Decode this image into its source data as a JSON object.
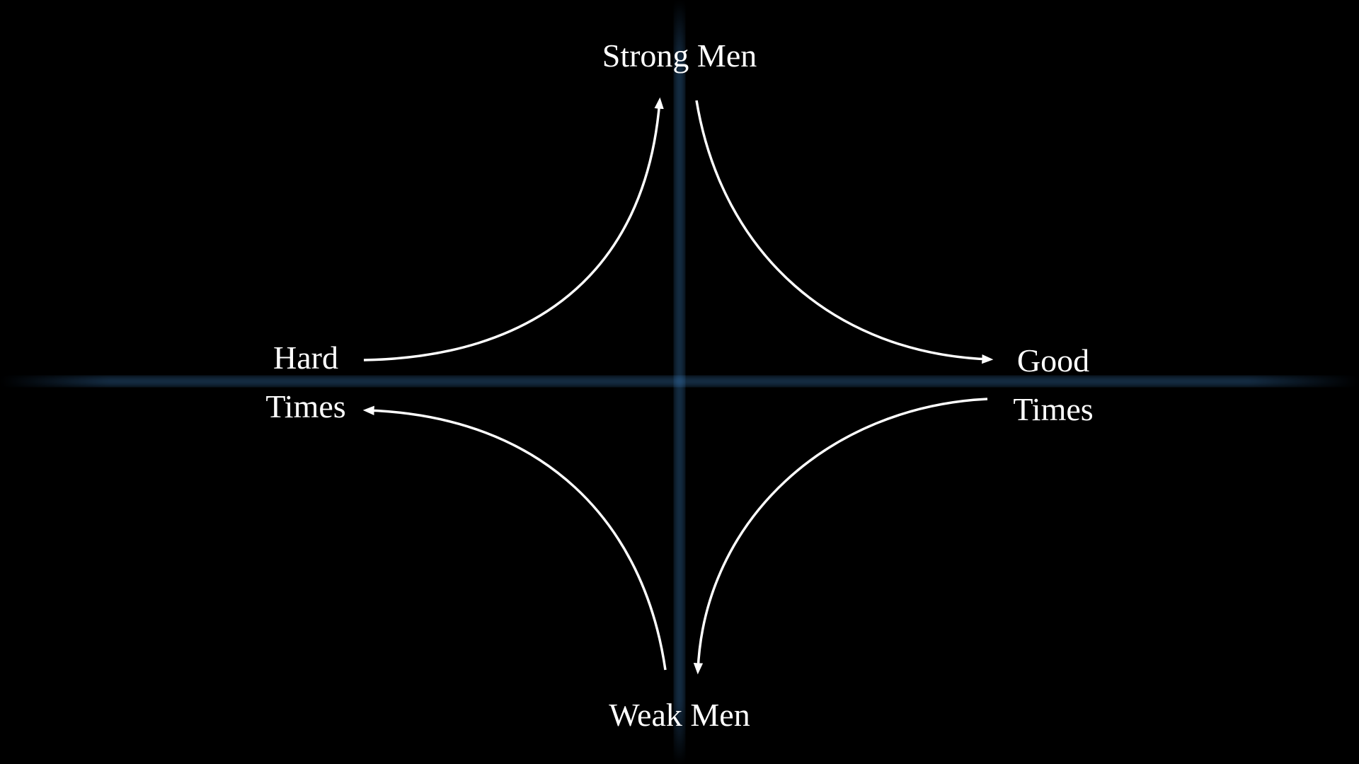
{
  "diagram": {
    "colors": {
      "background": "#000000",
      "axis": "#4a9eef",
      "arrow": "#ffffff",
      "text": "#ffffff"
    },
    "labels": {
      "top": "Strong Men",
      "bottom": "Weak Men",
      "left_line1": "Hard",
      "left_line2": "Times",
      "right_line1": "Good",
      "right_line2": "Times"
    },
    "cycle": [
      {
        "from": "Hard Times",
        "to": "Strong Men"
      },
      {
        "from": "Strong Men",
        "to": "Good Times"
      },
      {
        "from": "Good Times",
        "to": "Weak Men"
      },
      {
        "from": "Weak Men",
        "to": "Hard Times"
      }
    ]
  }
}
